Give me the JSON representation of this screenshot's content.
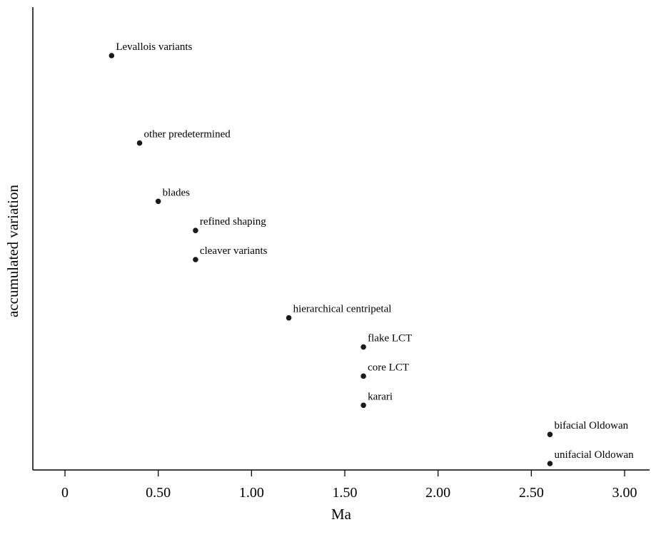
{
  "chart_data": {
    "type": "scatter",
    "title": "",
    "xlabel": "Ma",
    "ylabel": "accumulated variation",
    "xlim": [
      -0.17,
      3.13
    ],
    "ylim": [
      0,
      15
    ],
    "x_ticks": [
      0,
      0.5,
      1,
      1.5,
      2,
      2.5,
      3
    ],
    "x_tick_labels": [
      "0",
      "0.50",
      "1.00",
      "1.50",
      "2.00",
      "2.50",
      "3.00"
    ],
    "y_ticks": [],
    "grid": false,
    "legend": "none",
    "marker_color": "#1a1a1a",
    "points": [
      {
        "label": "Levallois variants",
        "x": 0.25,
        "y": 14
      },
      {
        "label": "other predetermined",
        "x": 0.4,
        "y": 11
      },
      {
        "label": "blades",
        "x": 0.5,
        "y": 9
      },
      {
        "label": "refined shaping",
        "x": 0.7,
        "y": 8
      },
      {
        "label": "cleaver variants",
        "x": 0.7,
        "y": 7
      },
      {
        "label": "hierarchical centripetal",
        "x": 1.2,
        "y": 5
      },
      {
        "label": "flake LCT",
        "x": 1.6,
        "y": 4
      },
      {
        "label": "core LCT",
        "x": 1.6,
        "y": 3
      },
      {
        "label": "karari",
        "x": 1.6,
        "y": 2
      },
      {
        "label": "bifacial Oldowan",
        "x": 2.6,
        "y": 1
      },
      {
        "label": "unifacial Oldowan",
        "x": 2.6,
        "y": 0
      }
    ]
  }
}
